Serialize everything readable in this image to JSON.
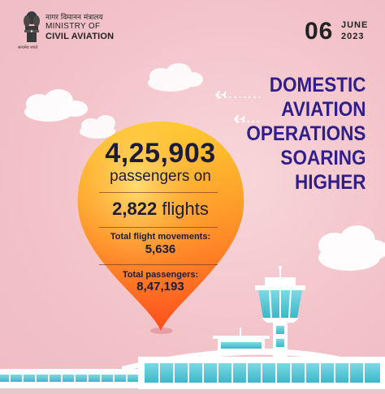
{
  "header": {
    "emblem_motto": "सत्यमेव जयते",
    "ministry_hindi": "नागर विमानन मंत्रालय",
    "ministry_line1": "MINISTRY OF",
    "ministry_line2": "CIVIL AVIATION"
  },
  "date": {
    "day": "06",
    "month": "JUNE",
    "year": "2023"
  },
  "headline": {
    "line1": "DOMESTIC",
    "line2": "AVIATION",
    "line3": "OPERATIONS",
    "line4": "SOARING",
    "line5": "HIGHER"
  },
  "stats": {
    "passengers_value": "4,25,903",
    "passengers_caption": "passengers on",
    "flights_value": "2,822",
    "flights_caption": "flights",
    "movements_label": "Total flight movements:",
    "movements_value": "5,636",
    "total_pax_label": "Total passengers:",
    "total_pax_value": "8,47,193"
  },
  "colors": {
    "background": "#f2c4ca",
    "headline": "#2f1f8a",
    "pin_top": "#ffcf2e",
    "pin_bottom": "#ff5a1f",
    "tower_body": "#ffffff",
    "tower_glass": "#4fc7d6"
  },
  "icons": [
    "national-emblem-icon",
    "airplane-icon",
    "cloud-icon",
    "airport-terminal-icon",
    "control-tower-icon"
  ]
}
